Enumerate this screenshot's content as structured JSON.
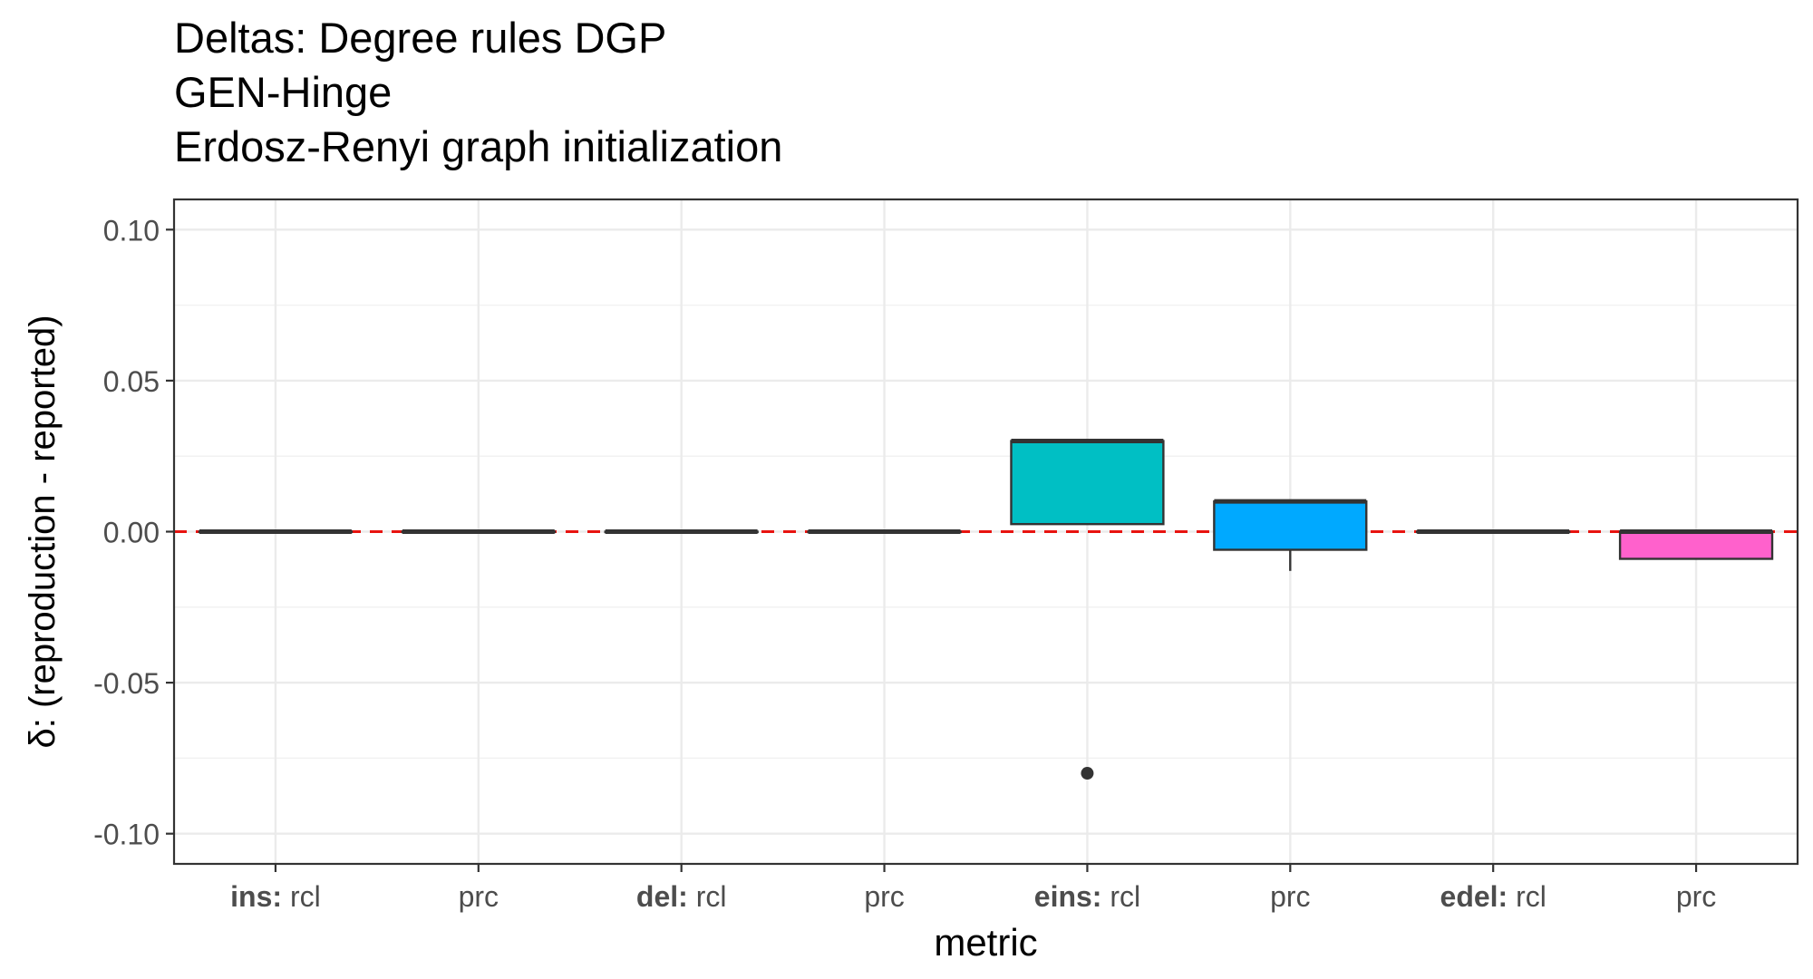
{
  "chart_data": {
    "type": "box",
    "title_lines": [
      "Deltas: Degree rules DGP",
      "GEN-Hinge",
      "Erdosz-Renyi graph initialization"
    ],
    "xlabel": "metric",
    "ylabel": "δ: (reproduction - reported)",
    "ylim": [
      -0.11,
      0.11
    ],
    "yticks": [
      0.1,
      0.05,
      0.0,
      -0.05,
      -0.1
    ],
    "ytick_labels": [
      "0.10",
      "0.05",
      "0.00",
      "-0.05",
      "-0.10"
    ],
    "reference_line": {
      "y": 0.0,
      "style": "dashed",
      "color": "#e8130f"
    },
    "grid": true,
    "categories": [
      {
        "bold": "ins:",
        "label": " rcl",
        "fill": "#f8766d",
        "box": {
          "q1": 0.0,
          "median": 0.0,
          "q3": 0.0,
          "whisker_low": 0.0,
          "whisker_high": 0.0
        },
        "outliers": []
      },
      {
        "bold": "",
        "label": "prc",
        "fill": "#cd9600",
        "box": {
          "q1": 0.0,
          "median": 0.0,
          "q3": 0.0,
          "whisker_low": 0.0,
          "whisker_high": 0.0
        },
        "outliers": []
      },
      {
        "bold": "del:",
        "label": " rcl",
        "fill": "#7cae00",
        "box": {
          "q1": 0.0,
          "median": 0.0,
          "q3": 0.0,
          "whisker_low": 0.0,
          "whisker_high": 0.0
        },
        "outliers": []
      },
      {
        "bold": "",
        "label": "prc",
        "fill": "#00be67",
        "box": {
          "q1": 0.0,
          "median": 0.0,
          "q3": 0.0,
          "whisker_low": 0.0,
          "whisker_high": 0.0
        },
        "outliers": []
      },
      {
        "bold": "eins:",
        "label": " rcl",
        "fill": "#00bfc4",
        "box": {
          "q1": 0.0025,
          "median": 0.03,
          "q3": 0.03,
          "whisker_low": 0.0025,
          "whisker_high": 0.03
        },
        "outliers": [
          -0.08
        ]
      },
      {
        "bold": "",
        "label": "prc",
        "fill": "#00a9ff",
        "box": {
          "q1": -0.006,
          "median": 0.01,
          "q3": 0.01,
          "whisker_low": -0.013,
          "whisker_high": 0.01
        },
        "outliers": []
      },
      {
        "bold": "edel:",
        "label": " rcl",
        "fill": "#c77cff",
        "box": {
          "q1": 0.0,
          "median": 0.0,
          "q3": 0.0,
          "whisker_low": 0.0,
          "whisker_high": 0.0
        },
        "outliers": []
      },
      {
        "bold": "",
        "label": "prc",
        "fill": "#ff61cc",
        "box": {
          "q1": -0.009,
          "median": 0.0,
          "q3": 0.0,
          "whisker_low": -0.009,
          "whisker_high": 0.0
        },
        "outliers": []
      }
    ]
  }
}
